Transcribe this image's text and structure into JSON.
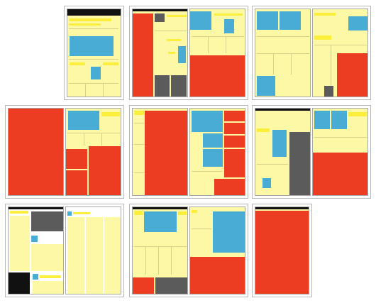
{
  "figure": {
    "description_color_key": {
      "text_area": "#fdf8a6",
      "headline_highlight": "#fbef3c",
      "photo": "#49acd4",
      "advertisement": "#ec3c22",
      "dark_graphic": "#5b5b5b",
      "black_masthead": "#111111"
    },
    "spreads": [
      {
        "label": "spread-1",
        "pages": 1
      },
      {
        "label": "spread-2",
        "pages": 2
      },
      {
        "label": "spread-3",
        "pages": 2
      },
      {
        "label": "spread-4",
        "pages": 2
      },
      {
        "label": "spread-5",
        "pages": 2
      },
      {
        "label": "spread-6",
        "pages": 2
      },
      {
        "label": "spread-7",
        "pages": 2
      },
      {
        "label": "spread-8",
        "pages": 2
      },
      {
        "label": "spread-9",
        "pages": 1
      }
    ]
  }
}
